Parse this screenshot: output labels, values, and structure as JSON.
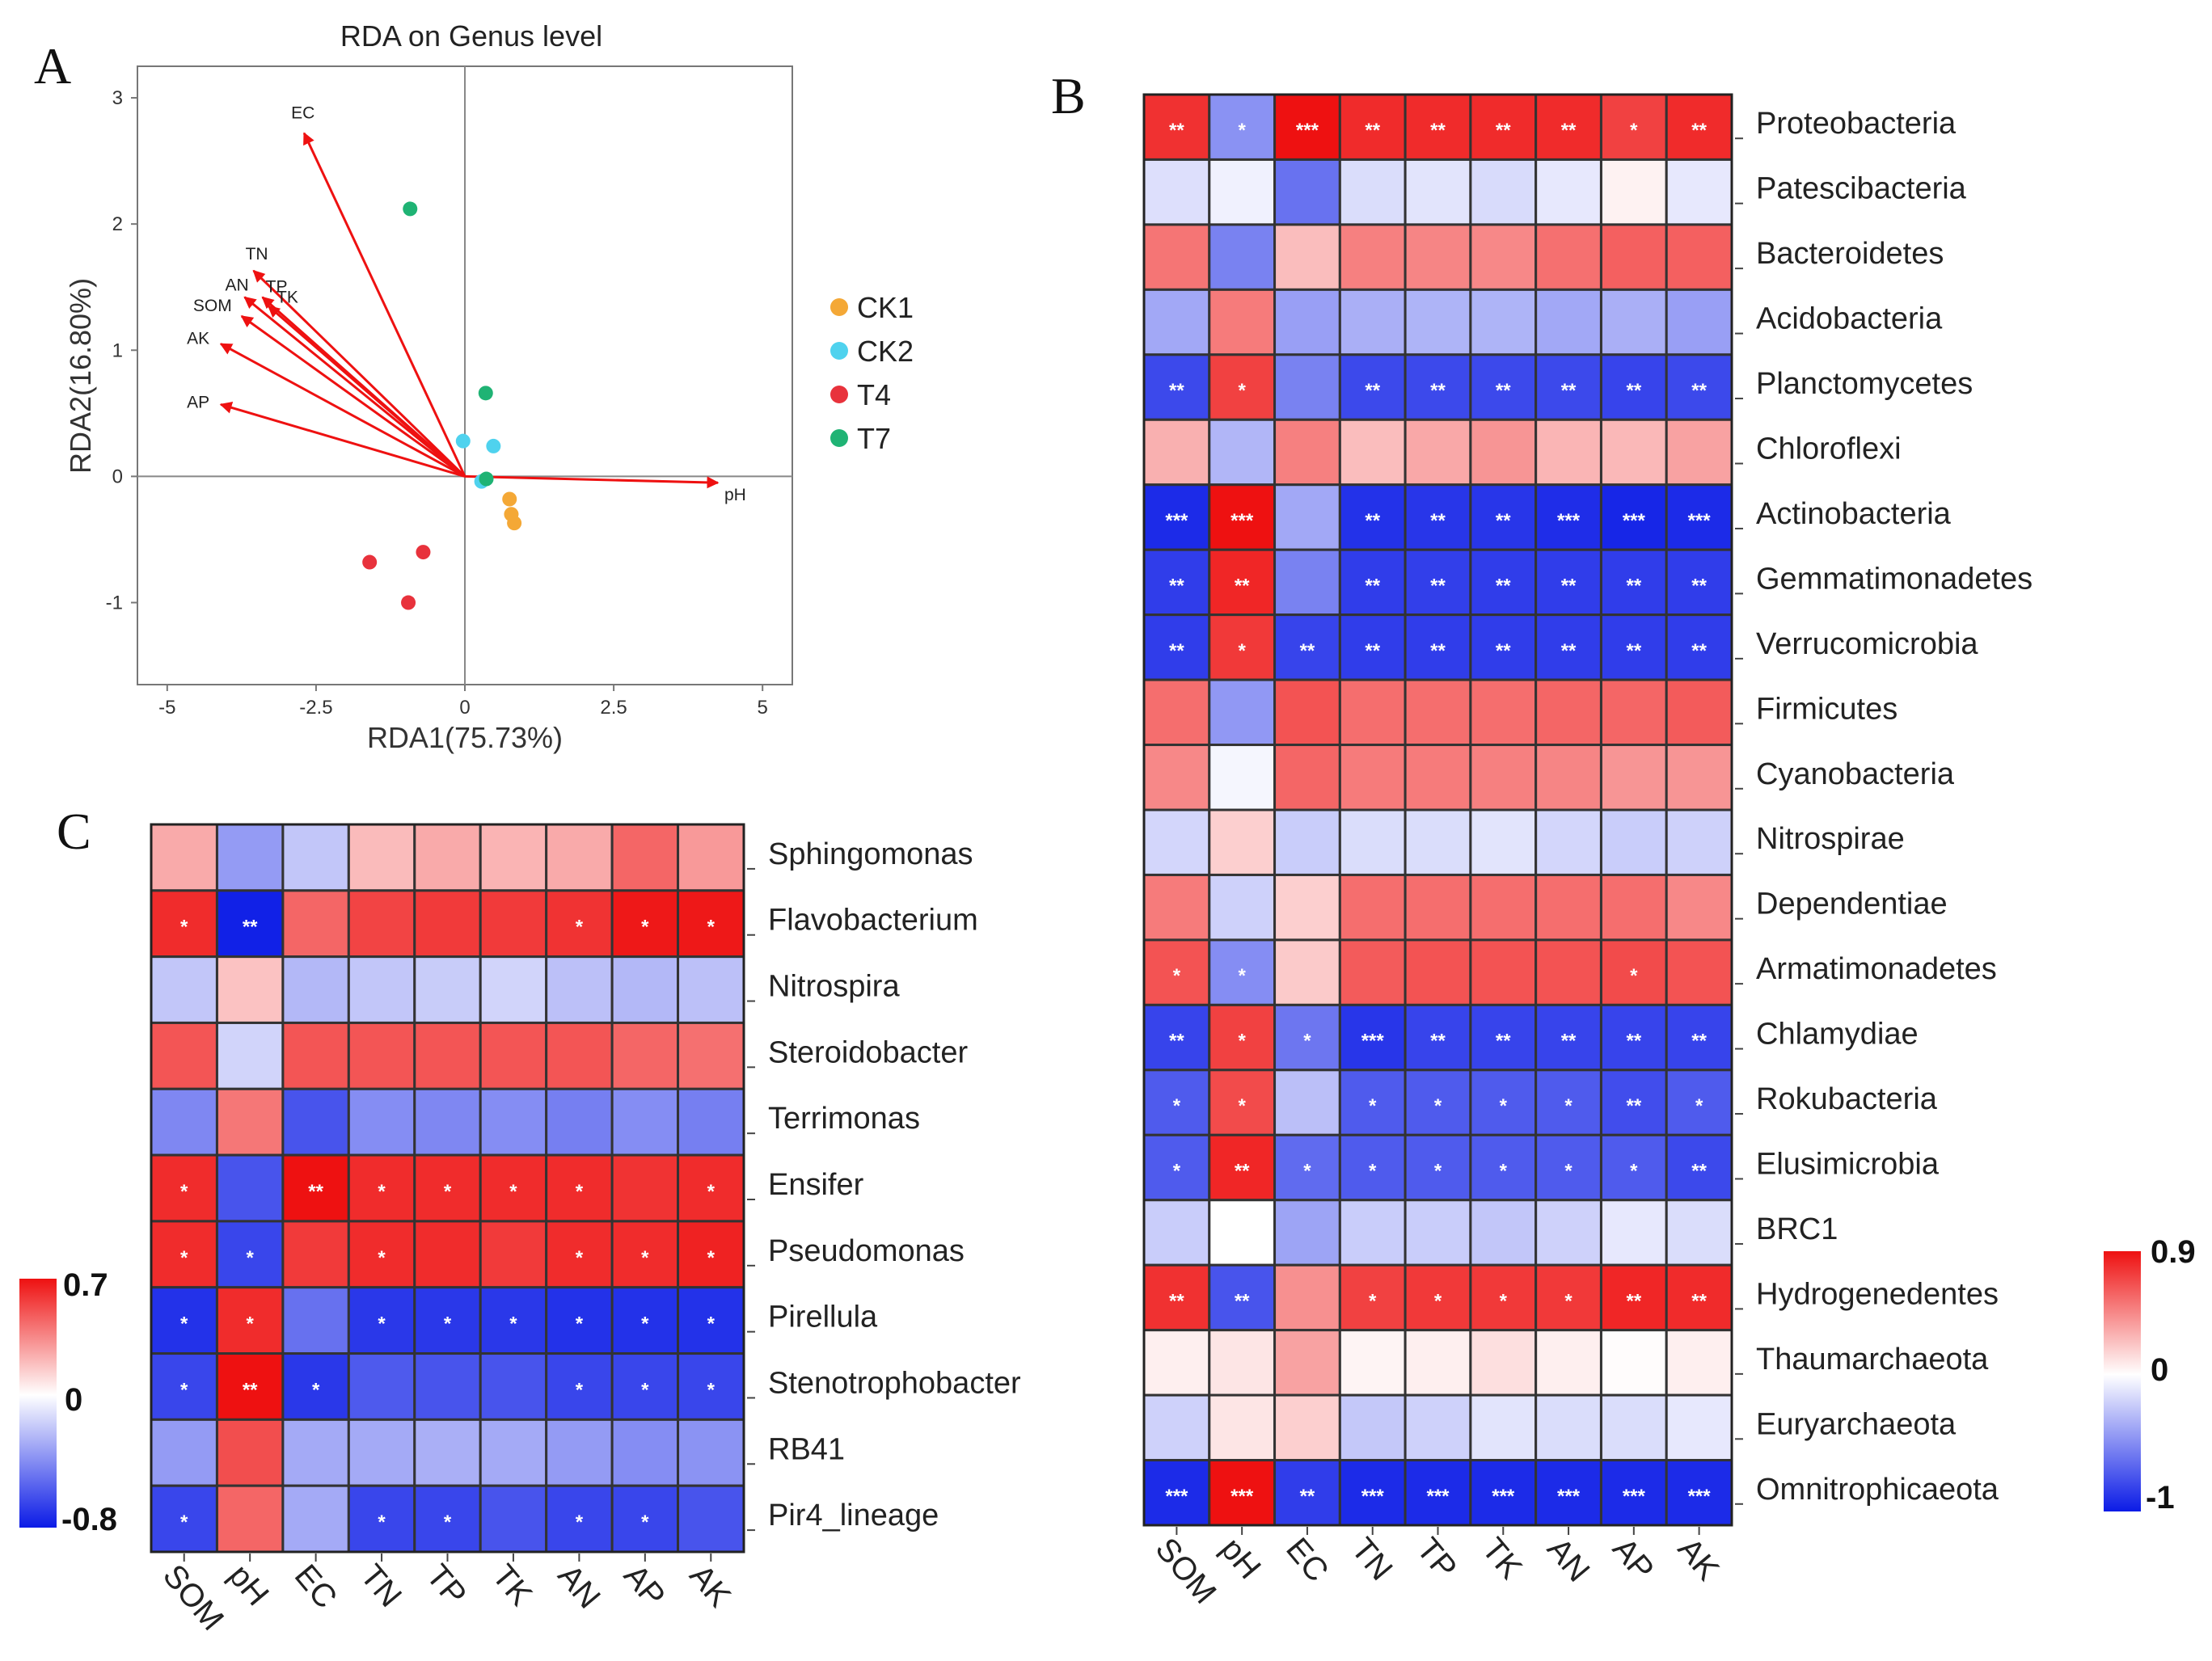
{
  "panel_labels": {
    "a": "A",
    "b": "B",
    "c": "C"
  },
  "colors": {
    "neg": "#0b1be6",
    "mid": "#ffffff",
    "pos": "#ee1111",
    "grid": "#333333"
  },
  "chart_data": [
    {
      "type": "scatter",
      "id": "A",
      "title": "RDA on Genus level",
      "xlabel": "RDA1(75.73%)",
      "ylabel": "RDA2(16.80%)",
      "xlim": [
        -5.5,
        5.5
      ],
      "ylim": [
        -1.65,
        3.25
      ],
      "xticks": [
        -5,
        -2.5,
        0,
        2.5,
        5
      ],
      "xtick_labels": [
        "-5",
        "-2.5",
        "0",
        "2.5",
        "5"
      ],
      "yticks": [
        -1,
        0,
        1,
        2,
        3
      ],
      "ytick_labels": [
        "-1",
        "0",
        "1",
        "2",
        "3"
      ],
      "vectors": [
        {
          "name": "EC",
          "x": -2.7,
          "y": 2.72
        },
        {
          "name": "TN",
          "x": -3.55,
          "y": 1.63
        },
        {
          "name": "AN",
          "x": -3.7,
          "y": 1.42
        },
        {
          "name": "TP",
          "x": -3.4,
          "y": 1.42
        },
        {
          "name": "TK",
          "x": -3.3,
          "y": 1.35
        },
        {
          "name": "SOM",
          "x": -3.75,
          "y": 1.27
        },
        {
          "name": "AK",
          "x": -4.1,
          "y": 1.05
        },
        {
          "name": "AP",
          "x": -4.1,
          "y": 0.57
        },
        {
          "name": "pH",
          "x": 4.25,
          "y": -0.05
        }
      ],
      "series": [
        {
          "name": "CK1",
          "color": "#f4a836",
          "points": [
            [
              0.75,
              -0.18
            ],
            [
              0.78,
              -0.3
            ],
            [
              0.83,
              -0.37
            ]
          ]
        },
        {
          "name": "CK2",
          "color": "#4fd2ee",
          "points": [
            [
              -0.03,
              0.28
            ],
            [
              0.48,
              0.24
            ],
            [
              0.28,
              -0.04
            ]
          ]
        },
        {
          "name": "T4",
          "color": "#e8323c",
          "points": [
            [
              -1.6,
              -0.68
            ],
            [
              -0.7,
              -0.6
            ],
            [
              -0.95,
              -1.0
            ]
          ]
        },
        {
          "name": "T7",
          "color": "#1fb374",
          "points": [
            [
              -0.92,
              2.12
            ],
            [
              0.35,
              0.66
            ],
            [
              0.36,
              -0.02
            ]
          ]
        }
      ]
    },
    {
      "type": "heatmap",
      "id": "B",
      "columns": [
        "SOM",
        "pH",
        "EC",
        "TN",
        "TP",
        "TK",
        "AN",
        "AP",
        "AK"
      ],
      "rows": [
        {
          "name": "Proteobacteria",
          "values": [
            0.78,
            -0.48,
            0.95,
            0.8,
            0.8,
            0.8,
            0.8,
            0.72,
            0.8
          ],
          "sig": [
            "**",
            "*",
            "***",
            "**",
            "**",
            "**",
            "**",
            "*",
            "**"
          ]
        },
        {
          "name": "Patescibacteria",
          "values": [
            -0.14,
            -0.06,
            -0.62,
            -0.15,
            -0.12,
            -0.16,
            -0.1,
            0.05,
            -0.1
          ],
          "sig": [
            "",
            "",
            "",
            "",
            "",
            "",
            "",
            "",
            ""
          ]
        },
        {
          "name": "Bacteroidetes",
          "values": [
            0.52,
            -0.55,
            0.25,
            0.48,
            0.46,
            0.45,
            0.54,
            0.6,
            0.6
          ],
          "sig": [
            "",
            "",
            "",
            "",
            "",
            "",
            "",
            "",
            ""
          ]
        },
        {
          "name": "Acidobacteria",
          "values": [
            -0.38,
            0.5,
            -0.42,
            -0.35,
            -0.33,
            -0.33,
            -0.38,
            -0.35,
            -0.42
          ],
          "sig": [
            "",
            "",
            "",
            "",
            "",
            "",
            "",
            "",
            ""
          ]
        },
        {
          "name": "Planctomycetes",
          "values": [
            -0.8,
            0.72,
            -0.55,
            -0.8,
            -0.8,
            -0.8,
            -0.8,
            -0.82,
            -0.8
          ],
          "sig": [
            "**",
            "*",
            "",
            "**",
            "**",
            "**",
            "**",
            "**",
            "**"
          ]
        },
        {
          "name": "Chloroflexi",
          "values": [
            0.3,
            -0.32,
            0.48,
            0.25,
            0.33,
            0.4,
            0.28,
            0.27,
            0.35
          ],
          "sig": [
            "",
            "",
            "",
            "",
            "",
            "",
            "",
            "",
            ""
          ]
        },
        {
          "name": "Actinobacteria",
          "values": [
            -0.93,
            0.95,
            -0.38,
            -0.9,
            -0.88,
            -0.88,
            -0.92,
            -0.95,
            -0.93
          ],
          "sig": [
            "***",
            "***",
            "",
            "**",
            "**",
            "**",
            "***",
            "***",
            "***"
          ]
        },
        {
          "name": "Gemmatimonadetes",
          "values": [
            -0.85,
            0.82,
            -0.55,
            -0.85,
            -0.84,
            -0.85,
            -0.85,
            -0.85,
            -0.85
          ],
          "sig": [
            "**",
            "**",
            "",
            "**",
            "**",
            "**",
            "**",
            "**",
            "**"
          ]
        },
        {
          "name": "Verrucomicrobia",
          "values": [
            -0.85,
            0.75,
            -0.82,
            -0.85,
            -0.85,
            -0.85,
            -0.85,
            -0.85,
            -0.85
          ],
          "sig": [
            "**",
            "*",
            "**",
            "**",
            "**",
            "**",
            "**",
            "**",
            "**"
          ]
        },
        {
          "name": "Firmicutes",
          "values": [
            0.55,
            -0.45,
            0.65,
            0.55,
            0.55,
            0.55,
            0.58,
            0.58,
            0.62
          ],
          "sig": [
            "",
            "",
            "",
            "",
            "",
            "",
            "",
            "",
            ""
          ]
        },
        {
          "name": "Cyanobacteria",
          "values": [
            0.45,
            -0.04,
            0.58,
            0.5,
            0.5,
            0.48,
            0.46,
            0.4,
            0.4
          ],
          "sig": [
            "",
            "",
            "",
            "",
            "",
            "",
            "",
            "",
            ""
          ]
        },
        {
          "name": "Nitrospirae",
          "values": [
            -0.18,
            0.18,
            -0.22,
            -0.15,
            -0.15,
            -0.12,
            -0.18,
            -0.22,
            -0.2
          ],
          "sig": [
            "",
            "",
            "",
            "",
            "",
            "",
            "",
            "",
            ""
          ]
        },
        {
          "name": "Dependentiae",
          "values": [
            0.5,
            -0.2,
            0.18,
            0.55,
            0.55,
            0.55,
            0.55,
            0.55,
            0.45
          ],
          "sig": [
            "",
            "",
            "",
            "",
            "",
            "",
            "",
            "",
            ""
          ]
        },
        {
          "name": "Armatimonadetes",
          "values": [
            0.65,
            -0.5,
            0.2,
            0.62,
            0.65,
            0.65,
            0.65,
            0.68,
            0.65
          ],
          "sig": [
            "*",
            "*",
            "",
            "",
            "",
            "",
            "",
            "*",
            ""
          ]
        },
        {
          "name": "Chlamydiae",
          "values": [
            -0.82,
            0.72,
            -0.6,
            -0.88,
            -0.82,
            -0.82,
            -0.82,
            -0.82,
            -0.82
          ],
          "sig": [
            "**",
            "*",
            "*",
            "***",
            "**",
            "**",
            "**",
            "**",
            "**"
          ]
        },
        {
          "name": "Rokubacteria",
          "values": [
            -0.72,
            0.68,
            -0.28,
            -0.72,
            -0.72,
            -0.72,
            -0.72,
            -0.78,
            -0.72
          ],
          "sig": [
            "*",
            "*",
            "",
            "*",
            "*",
            "*",
            "*",
            "**",
            "*"
          ]
        },
        {
          "name": "Elusimicrobia",
          "values": [
            -0.72,
            0.82,
            -0.65,
            -0.72,
            -0.72,
            -0.72,
            -0.72,
            -0.72,
            -0.8
          ],
          "sig": [
            "*",
            "**",
            "*",
            "*",
            "*",
            "*",
            "*",
            "*",
            "**"
          ]
        },
        {
          "name": "BRC1",
          "values": [
            -0.22,
            0.0,
            -0.4,
            -0.22,
            -0.22,
            -0.25,
            -0.2,
            -0.1,
            -0.15
          ],
          "sig": [
            "",
            "",
            "",
            "",
            "",
            "",
            "",
            "",
            ""
          ]
        },
        {
          "name": "Hydrogenedentes",
          "values": [
            0.78,
            -0.75,
            0.42,
            0.72,
            0.75,
            0.75,
            0.75,
            0.82,
            0.8
          ],
          "sig": [
            "**",
            "**",
            "",
            "*",
            "*",
            "*",
            "*",
            "**",
            "**"
          ]
        },
        {
          "name": "Thaumarchaeota",
          "values": [
            0.06,
            0.1,
            0.35,
            0.04,
            0.06,
            0.12,
            0.06,
            0.01,
            0.06
          ],
          "sig": [
            "",
            "",
            "",
            "",
            "",
            "",
            "",
            "",
            ""
          ]
        },
        {
          "name": "Euryarchaeota",
          "values": [
            -0.2,
            0.1,
            0.18,
            -0.24,
            -0.2,
            -0.12,
            -0.15,
            -0.15,
            -0.1
          ],
          "sig": [
            "",
            "",
            "",
            "",
            "",
            "",
            "",
            "",
            ""
          ]
        },
        {
          "name": "Omnitrophicaeota",
          "values": [
            -0.93,
            0.95,
            -0.85,
            -0.93,
            -0.93,
            -0.93,
            -0.93,
            -0.93,
            -0.93
          ],
          "sig": [
            "***",
            "***",
            "**",
            "***",
            "***",
            "***",
            "***",
            "***",
            "***"
          ]
        }
      ],
      "colorbar": {
        "min": -1,
        "mid": 0,
        "max": 0.9,
        "labels": [
          "0.9",
          "0",
          "-1"
        ]
      }
    },
    {
      "type": "heatmap",
      "id": "C",
      "columns": [
        "SOM",
        "pH",
        "EC",
        "TN",
        "TP",
        "TK",
        "AN",
        "AP",
        "AK"
      ],
      "rows": [
        {
          "name": "Sphingomonas",
          "values": [
            0.25,
            -0.35,
            -0.2,
            0.2,
            0.25,
            0.22,
            0.25,
            0.45,
            0.3
          ],
          "sig": [
            "",
            "",
            "",
            "",
            "",
            "",
            "",
            "",
            ""
          ]
        },
        {
          "name": "Flavobacterium",
          "values": [
            0.62,
            -0.78,
            0.45,
            0.55,
            0.58,
            0.58,
            0.6,
            0.68,
            0.68
          ],
          "sig": [
            "*",
            "**",
            "",
            "",
            "",
            "",
            "*",
            "*",
            "*"
          ]
        },
        {
          "name": "Nitrospira",
          "values": [
            -0.2,
            0.18,
            -0.25,
            -0.2,
            -0.18,
            -0.15,
            -0.22,
            -0.25,
            -0.22
          ],
          "sig": [
            "",
            "",
            "",
            "",
            "",
            "",
            "",
            "",
            ""
          ]
        },
        {
          "name": "Steroidobacter",
          "values": [
            0.5,
            -0.15,
            0.5,
            0.5,
            0.5,
            0.5,
            0.5,
            0.45,
            0.42
          ],
          "sig": [
            "",
            "",
            "",
            "",
            "",
            "",
            "",
            "",
            ""
          ]
        },
        {
          "name": "Terrimonas",
          "values": [
            -0.42,
            0.4,
            -0.6,
            -0.4,
            -0.42,
            -0.4,
            -0.45,
            -0.4,
            -0.45
          ],
          "sig": [
            "",
            "",
            "",
            "",
            "",
            "",
            "",
            "",
            ""
          ]
        },
        {
          "name": "Ensifer",
          "values": [
            0.62,
            -0.6,
            0.7,
            0.62,
            0.62,
            0.62,
            0.62,
            0.6,
            0.62
          ],
          "sig": [
            "*",
            "",
            "**",
            "*",
            "*",
            "*",
            "*",
            "",
            "*"
          ]
        },
        {
          "name": "Pseudomonas",
          "values": [
            0.62,
            -0.65,
            0.58,
            0.62,
            0.62,
            0.58,
            0.62,
            0.62,
            0.65
          ],
          "sig": [
            "*",
            "*",
            "",
            "*",
            "",
            "",
            "*",
            "*",
            "*"
          ]
        },
        {
          "name": "Pirellula",
          "values": [
            -0.72,
            0.62,
            -0.5,
            -0.7,
            -0.7,
            -0.7,
            -0.72,
            -0.72,
            -0.72
          ],
          "sig": [
            "*",
            "*",
            "",
            "*",
            "*",
            "*",
            "*",
            "*",
            "*"
          ]
        },
        {
          "name": "Stenotrophobacter",
          "values": [
            -0.65,
            0.7,
            -0.7,
            -0.58,
            -0.6,
            -0.6,
            -0.65,
            -0.65,
            -0.65
          ],
          "sig": [
            "*",
            "**",
            "*",
            "",
            "",
            "",
            "*",
            "*",
            "*"
          ]
        },
        {
          "name": "RB41",
          "values": [
            -0.35,
            0.52,
            -0.3,
            -0.3,
            -0.28,
            -0.3,
            -0.35,
            -0.4,
            -0.38
          ],
          "sig": [
            "",
            "",
            "",
            "",
            "",
            "",
            "",
            "",
            ""
          ]
        },
        {
          "name": "Pir4_lineage",
          "values": [
            -0.65,
            0.45,
            -0.3,
            -0.65,
            -0.65,
            -0.6,
            -0.65,
            -0.65,
            -0.6
          ],
          "sig": [
            "*",
            "",
            "",
            "*",
            "*",
            "",
            "*",
            "*",
            ""
          ]
        }
      ],
      "colorbar": {
        "min": -0.8,
        "mid": 0,
        "max": 0.7,
        "labels": [
          "0.7",
          "0",
          "-0.8"
        ]
      }
    }
  ]
}
